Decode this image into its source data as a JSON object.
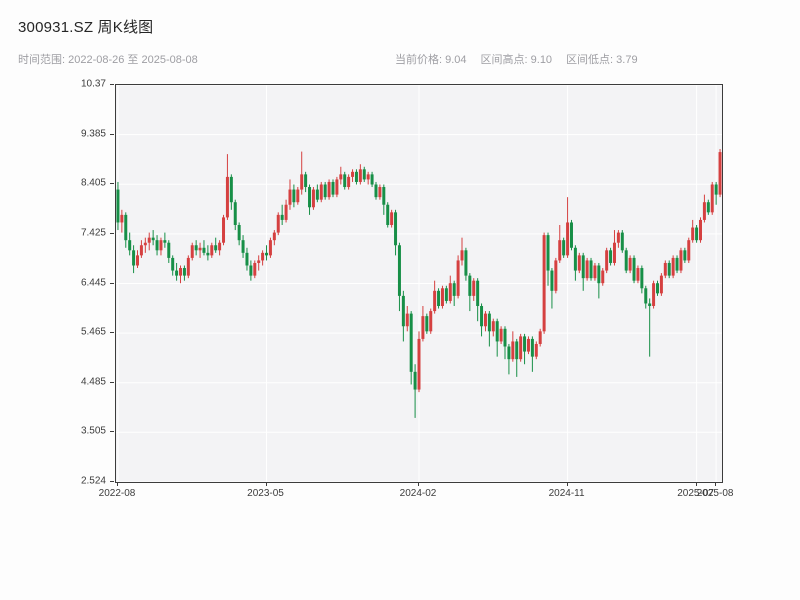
{
  "header": {
    "title": "300931.SZ 周K线图",
    "subtitle_left": "时间范围: 2022-08-26 至 2025-08-08",
    "stats": [
      "当前价格: 9.04",
      "区间高点: 9.10",
      "区间低点: 3.79"
    ]
  },
  "chart_data": {
    "type": "candlestick",
    "title": "300931.SZ 周K线图",
    "xlabel": "",
    "ylabel": "",
    "date_range": [
      "2022-08-26",
      "2025-08-08"
    ],
    "current_price": 9.04,
    "range_high": 9.1,
    "range_low": 3.79,
    "ylim": [
      2.524,
      10.365
    ],
    "yticks": [
      2.524,
      3.505,
      4.485,
      5.465,
      6.445,
      7.425,
      8.405,
      9.385,
      10.365
    ],
    "ytick_labels": [
      "2.524",
      "3.505",
      "4.485",
      "5.465",
      "6.445",
      "7.425",
      "8.405",
      "9.385",
      "10.37"
    ],
    "xticks": [
      {
        "label": "2022-08",
        "week": 0
      },
      {
        "label": "2023-05",
        "week": 38
      },
      {
        "label": "2024-02",
        "week": 77
      },
      {
        "label": "2024-11",
        "week": 115
      },
      {
        "label": "2025-07",
        "week": 148
      },
      {
        "label": "2025-08",
        "week": 153
      }
    ],
    "grid": true,
    "grid_color": "#ffffff",
    "up_color": "#d54040",
    "down_color": "#178f47",
    "candles_ohlc": [
      [
        8.3,
        8.45,
        7.5,
        7.65
      ],
      [
        7.65,
        7.9,
        7.45,
        7.8
      ],
      [
        7.8,
        7.85,
        7.15,
        7.3
      ],
      [
        7.3,
        7.45,
        7.0,
        7.1
      ],
      [
        7.1,
        7.2,
        6.65,
        6.8
      ],
      [
        6.8,
        7.1,
        6.75,
        7.0
      ],
      [
        7.0,
        7.3,
        6.95,
        7.2
      ],
      [
        7.2,
        7.35,
        7.05,
        7.25
      ],
      [
        7.25,
        7.45,
        7.1,
        7.35
      ],
      [
        7.35,
        7.5,
        7.2,
        7.3
      ],
      [
        7.3,
        7.4,
        7.0,
        7.1
      ],
      [
        7.1,
        7.35,
        7.0,
        7.3
      ],
      [
        7.3,
        7.45,
        7.15,
        7.25
      ],
      [
        7.25,
        7.3,
        6.85,
        6.95
      ],
      [
        6.95,
        7.0,
        6.6,
        6.7
      ],
      [
        6.7,
        6.85,
        6.5,
        6.6
      ],
      [
        6.6,
        6.8,
        6.45,
        6.75
      ],
      [
        6.75,
        6.8,
        6.5,
        6.6
      ],
      [
        6.6,
        7.0,
        6.55,
        6.95
      ],
      [
        6.95,
        7.25,
        6.9,
        7.2
      ],
      [
        7.2,
        7.3,
        7.0,
        7.1
      ],
      [
        7.1,
        7.25,
        6.95,
        7.15
      ],
      [
        7.15,
        7.3,
        7.0,
        7.05
      ],
      [
        7.05,
        7.2,
        6.9,
        7.0
      ],
      [
        7.0,
        7.25,
        6.95,
        7.2
      ],
      [
        7.2,
        7.35,
        7.05,
        7.1
      ],
      [
        7.1,
        7.3,
        7.0,
        7.25
      ],
      [
        7.25,
        7.8,
        7.2,
        7.75
      ],
      [
        7.75,
        9.0,
        7.7,
        8.55
      ],
      [
        8.55,
        8.6,
        7.9,
        8.05
      ],
      [
        8.05,
        8.1,
        7.5,
        7.6
      ],
      [
        7.6,
        7.65,
        7.2,
        7.3
      ],
      [
        7.3,
        7.4,
        6.95,
        7.05
      ],
      [
        7.05,
        7.15,
        6.7,
        6.8
      ],
      [
        6.8,
        6.9,
        6.5,
        6.6
      ],
      [
        6.6,
        6.9,
        6.55,
        6.85
      ],
      [
        6.85,
        7.0,
        6.7,
        6.9
      ],
      [
        6.9,
        7.1,
        6.8,
        7.05
      ],
      [
        7.05,
        7.2,
        6.9,
        7.0
      ],
      [
        7.0,
        7.35,
        6.95,
        7.3
      ],
      [
        7.3,
        7.5,
        7.2,
        7.45
      ],
      [
        7.45,
        7.85,
        7.4,
        7.8
      ],
      [
        7.8,
        8.0,
        7.6,
        7.7
      ],
      [
        7.7,
        8.1,
        7.65,
        8.0
      ],
      [
        8.0,
        8.5,
        7.9,
        8.3
      ],
      [
        8.3,
        8.4,
        7.95,
        8.05
      ],
      [
        8.05,
        8.35,
        8.0,
        8.3
      ],
      [
        8.3,
        9.05,
        8.2,
        8.6
      ],
      [
        8.6,
        8.65,
        8.25,
        8.35
      ],
      [
        8.35,
        8.4,
        7.8,
        7.95
      ],
      [
        7.95,
        8.35,
        7.9,
        8.3
      ],
      [
        8.3,
        8.4,
        8.05,
        8.1
      ],
      [
        8.1,
        8.45,
        8.05,
        8.4
      ],
      [
        8.4,
        8.45,
        8.1,
        8.15
      ],
      [
        8.15,
        8.5,
        8.1,
        8.45
      ],
      [
        8.45,
        8.5,
        8.15,
        8.2
      ],
      [
        8.2,
        8.55,
        8.15,
        8.5
      ],
      [
        8.5,
        8.75,
        8.4,
        8.6
      ],
      [
        8.6,
        8.65,
        8.3,
        8.35
      ],
      [
        8.35,
        8.6,
        8.3,
        8.55
      ],
      [
        8.55,
        8.7,
        8.45,
        8.65
      ],
      [
        8.65,
        8.7,
        8.4,
        8.45
      ],
      [
        8.45,
        8.8,
        8.4,
        8.7
      ],
      [
        8.7,
        8.75,
        8.45,
        8.5
      ],
      [
        8.5,
        8.65,
        8.4,
        8.6
      ],
      [
        8.6,
        8.65,
        8.35,
        8.4
      ],
      [
        8.4,
        8.45,
        8.1,
        8.15
      ],
      [
        8.15,
        8.4,
        8.1,
        8.35
      ],
      [
        8.35,
        8.4,
        7.8,
        8.0
      ],
      [
        8.0,
        8.05,
        7.55,
        7.6
      ],
      [
        7.6,
        7.9,
        7.55,
        7.85
      ],
      [
        7.85,
        7.9,
        7.0,
        7.2
      ],
      [
        7.2,
        7.25,
        5.9,
        6.2
      ],
      [
        6.2,
        6.3,
        5.3,
        5.6
      ],
      [
        5.6,
        6.0,
        5.5,
        5.85
      ],
      [
        5.85,
        5.9,
        4.45,
        4.7
      ],
      [
        4.7,
        4.85,
        3.79,
        4.35
      ],
      [
        4.35,
        5.5,
        4.3,
        5.35
      ],
      [
        5.35,
        6.0,
        5.3,
        5.8
      ],
      [
        5.8,
        5.85,
        5.45,
        5.5
      ],
      [
        5.5,
        5.95,
        5.45,
        5.9
      ],
      [
        5.9,
        6.5,
        5.85,
        6.3
      ],
      [
        6.3,
        6.35,
        5.95,
        6.0
      ],
      [
        6.0,
        6.4,
        5.95,
        6.35
      ],
      [
        6.35,
        6.4,
        6.05,
        6.1
      ],
      [
        6.1,
        6.6,
        6.05,
        6.45
      ],
      [
        6.45,
        6.5,
        6.0,
        6.2
      ],
      [
        6.2,
        7.0,
        6.15,
        6.9
      ],
      [
        6.9,
        7.35,
        6.8,
        7.1
      ],
      [
        7.1,
        7.15,
        6.5,
        6.6
      ],
      [
        6.6,
        6.65,
        5.9,
        6.2
      ],
      [
        6.2,
        6.55,
        6.1,
        6.5
      ],
      [
        6.5,
        6.55,
        5.7,
        6.0
      ],
      [
        6.0,
        6.05,
        5.4,
        5.6
      ],
      [
        5.6,
        5.9,
        5.5,
        5.85
      ],
      [
        5.85,
        5.9,
        5.2,
        5.5
      ],
      [
        5.5,
        5.75,
        5.4,
        5.7
      ],
      [
        5.7,
        5.75,
        5.0,
        5.3
      ],
      [
        5.3,
        5.6,
        5.25,
        5.55
      ],
      [
        5.55,
        5.6,
        4.95,
        5.2
      ],
      [
        5.2,
        5.25,
        4.65,
        4.95
      ],
      [
        4.95,
        5.5,
        4.9,
        5.3
      ],
      [
        5.3,
        5.35,
        4.6,
        4.95
      ],
      [
        4.95,
        5.45,
        4.9,
        5.4
      ],
      [
        5.4,
        5.45,
        4.85,
        5.1
      ],
      [
        5.1,
        5.4,
        5.05,
        5.35
      ],
      [
        5.35,
        5.4,
        4.7,
        5.0
      ],
      [
        5.0,
        5.3,
        4.95,
        5.25
      ],
      [
        5.25,
        5.55,
        5.2,
        5.5
      ],
      [
        5.5,
        7.45,
        5.45,
        7.4
      ],
      [
        7.4,
        7.45,
        6.4,
        6.7
      ],
      [
        6.7,
        6.75,
        5.95,
        6.3
      ],
      [
        6.3,
        6.95,
        6.25,
        6.9
      ],
      [
        6.9,
        7.6,
        6.85,
        7.3
      ],
      [
        7.3,
        7.35,
        6.95,
        7.0
      ],
      [
        7.0,
        8.15,
        6.95,
        7.65
      ],
      [
        7.65,
        7.7,
        7.1,
        7.15
      ],
      [
        7.15,
        7.2,
        6.5,
        6.7
      ],
      [
        6.7,
        7.05,
        6.65,
        7.0
      ],
      [
        7.0,
        7.05,
        6.3,
        6.55
      ],
      [
        6.55,
        6.95,
        6.5,
        6.9
      ],
      [
        6.9,
        6.95,
        6.5,
        6.55
      ],
      [
        6.55,
        6.85,
        6.5,
        6.8
      ],
      [
        6.8,
        6.85,
        6.15,
        6.45
      ],
      [
        6.45,
        6.75,
        6.4,
        6.7
      ],
      [
        6.7,
        7.15,
        6.65,
        7.1
      ],
      [
        7.1,
        7.15,
        6.8,
        6.85
      ],
      [
        6.85,
        7.5,
        6.8,
        7.25
      ],
      [
        7.25,
        7.5,
        7.15,
        7.45
      ],
      [
        7.45,
        7.5,
        7.05,
        7.1
      ],
      [
        7.1,
        7.15,
        6.65,
        6.7
      ],
      [
        6.7,
        7.0,
        6.65,
        6.95
      ],
      [
        6.95,
        7.0,
        6.45,
        6.5
      ],
      [
        6.5,
        6.8,
        6.45,
        6.75
      ],
      [
        6.75,
        6.8,
        6.25,
        6.35
      ],
      [
        6.35,
        6.4,
        5.95,
        6.05
      ],
      [
        6.05,
        6.15,
        5.0,
        6.0
      ],
      [
        6.0,
        6.5,
        5.95,
        6.45
      ],
      [
        6.45,
        6.5,
        6.2,
        6.25
      ],
      [
        6.25,
        6.65,
        6.2,
        6.6
      ],
      [
        6.6,
        6.9,
        6.55,
        6.85
      ],
      [
        6.85,
        6.9,
        6.55,
        6.6
      ],
      [
        6.6,
        7.0,
        6.55,
        6.95
      ],
      [
        6.95,
        7.0,
        6.65,
        6.7
      ],
      [
        6.7,
        7.15,
        6.65,
        7.1
      ],
      [
        7.1,
        7.15,
        6.85,
        6.9
      ],
      [
        6.9,
        7.35,
        6.85,
        7.3
      ],
      [
        7.3,
        7.7,
        7.25,
        7.55
      ],
      [
        7.55,
        7.6,
        7.25,
        7.3
      ],
      [
        7.3,
        7.75,
        7.25,
        7.7
      ],
      [
        7.7,
        8.2,
        7.65,
        8.05
      ],
      [
        8.05,
        8.1,
        7.8,
        7.85
      ],
      [
        7.85,
        8.45,
        7.8,
        8.4
      ],
      [
        8.4,
        8.45,
        8.0,
        8.2
      ],
      [
        8.2,
        9.1,
        8.15,
        9.04
      ]
    ]
  }
}
